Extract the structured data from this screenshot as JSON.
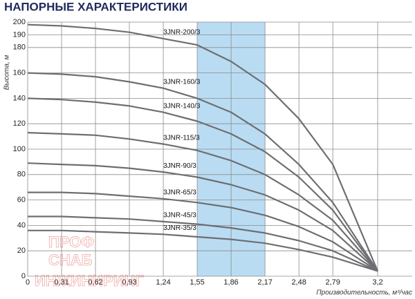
{
  "chart_data": {
    "type": "line",
    "title": "НАПОРНЫЕ ХАРАКТЕРИСТИКИ",
    "y_label": "Высота, м",
    "x_label": "Производительность, м³/час",
    "watermark": [
      "ПРОФ",
      "СНАБ",
      "ИНЖИНИРИНГ"
    ],
    "x": [
      0,
      0.31,
      0.62,
      0.93,
      1.24,
      1.55,
      1.86,
      2.17,
      2.48,
      2.79,
      3.2
    ],
    "xlim": [
      0,
      3.2
    ],
    "xticks": [
      0,
      {
        "value": 0.31,
        "label": "0,31"
      },
      {
        "value": 0.62,
        "label": "0,62"
      },
      {
        "value": 0.93,
        "label": "0,93"
      },
      {
        "value": 1.24,
        "label": "1,24"
      },
      {
        "value": 1.55,
        "label": "1,55"
      },
      {
        "value": 1.86,
        "label": "1,86"
      },
      {
        "value": 2.17,
        "label": "2,17"
      },
      {
        "value": 2.48,
        "label": "2,48"
      },
      {
        "value": 2.79,
        "label": "2,79"
      },
      {
        "value": 3.2,
        "label": "3,2"
      }
    ],
    "ylim": [
      0,
      200
    ],
    "yticks": [
      0,
      20,
      40,
      60,
      80,
      100,
      120,
      140,
      160,
      180,
      190,
      200
    ],
    "grid": true,
    "highlight_range": [
      1.55,
      2.17
    ],
    "highlight_color": "#b9dcf3",
    "series": [
      {
        "name": "3JNR-200/3",
        "color": "#6d6e71",
        "values": [
          198,
          197,
          195,
          192,
          187,
          182,
          169,
          151,
          124,
          88,
          4
        ]
      },
      {
        "name": "3JNR-160/3",
        "color": "#6d6e71",
        "values": [
          160,
          159,
          157,
          153,
          148,
          140,
          129,
          112,
          88,
          58,
          4
        ]
      },
      {
        "name": "3JNR-140/3",
        "color": "#6d6e71",
        "values": [
          140,
          139,
          137,
          134,
          129,
          122,
          112,
          98,
          78,
          52,
          4
        ]
      },
      {
        "name": "3JNR-115/3",
        "color": "#6d6e71",
        "values": [
          113,
          112,
          111,
          108,
          104,
          99,
          91,
          80,
          64,
          44,
          4
        ]
      },
      {
        "name": "3JNR-90/3",
        "color": "#6d6e71",
        "values": [
          89,
          88,
          87,
          85,
          82,
          78,
          72,
          64,
          52,
          36,
          4
        ]
      },
      {
        "name": "3JNR-65/3",
        "color": "#6d6e71",
        "values": [
          66,
          66,
          65,
          63,
          61,
          58,
          54,
          48,
          39,
          27,
          4
        ]
      },
      {
        "name": "3JNR-45/3",
        "color": "#6d6e71",
        "values": [
          47,
          47,
          46,
          45,
          43,
          41,
          38,
          34,
          28,
          20,
          4
        ]
      },
      {
        "name": "3JNR-35/3",
        "color": "#6d6e71",
        "values": [
          36,
          36,
          35,
          34,
          33,
          31,
          29,
          26,
          21,
          15,
          4
        ]
      }
    ]
  }
}
